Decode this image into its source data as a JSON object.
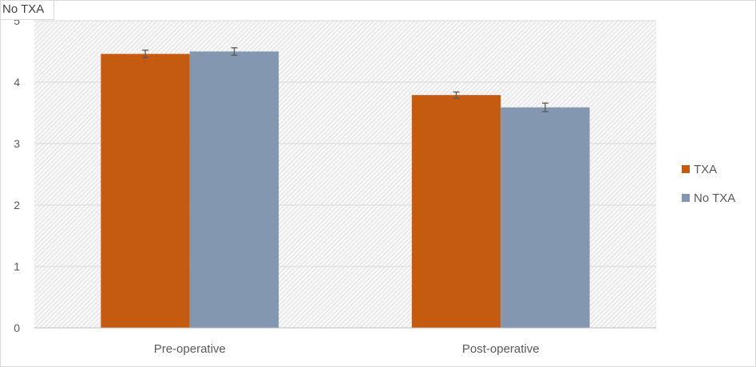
{
  "corner_label": "No TXA",
  "chart_data": {
    "type": "bar",
    "categories": [
      "Pre-operative",
      "Post-operative"
    ],
    "series": [
      {
        "name": "TXA",
        "values": [
          4.46,
          3.79
        ],
        "errors": [
          0.06,
          0.05
        ],
        "color": "#c55a11"
      },
      {
        "name": "No TXA",
        "values": [
          4.5,
          3.59
        ],
        "errors": [
          0.06,
          0.07
        ],
        "color": "#8497b0"
      }
    ],
    "yticks": [
      "0",
      "1",
      "2",
      "3",
      "4",
      "5"
    ],
    "ylim": [
      0,
      5
    ],
    "grid": true,
    "legend": "right",
    "title": "",
    "xlabel": "",
    "ylabel": ""
  }
}
